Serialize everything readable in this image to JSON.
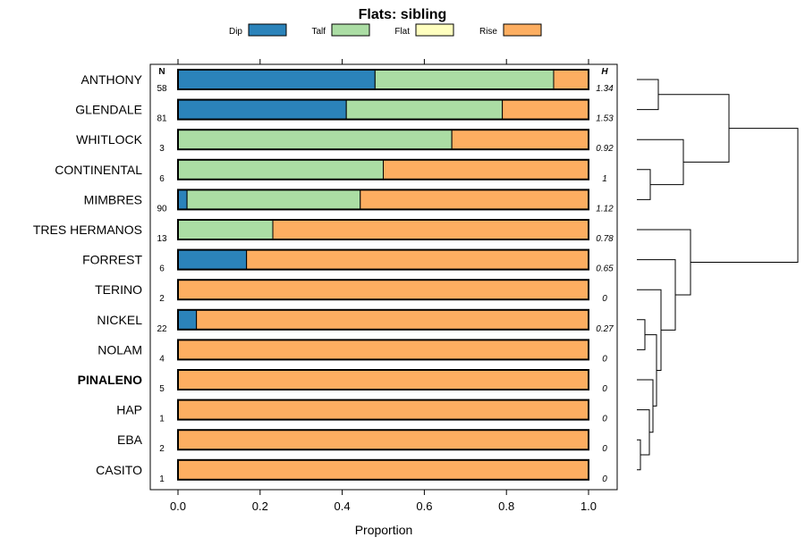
{
  "chart_data": {
    "type": "bar",
    "orientation": "horizontal",
    "stacked": true,
    "title": "Flats: sibling",
    "xlabel": "Proportion",
    "ylabel": "",
    "xlim": [
      0,
      1
    ],
    "x_ticks": [
      "0.0",
      "0.2",
      "0.4",
      "0.6",
      "0.8",
      "1.0"
    ],
    "x_tick_values": [
      0,
      0.2,
      0.4,
      0.6,
      0.8,
      1.0
    ],
    "legend_position": "top",
    "column_headers": {
      "n": "N",
      "h": "H"
    },
    "categories": [
      "ANTHONY",
      "GLENDALE",
      "WHITLOCK",
      "CONTINENTAL",
      "MIMBRES",
      "TRES HERMANOS",
      "FORREST",
      "TERINO",
      "NICKEL",
      "NOLAM",
      "PINALENO",
      "HAP",
      "EBA",
      "CASITO"
    ],
    "bold_categories": [
      "PINALENO"
    ],
    "n_values": [
      "58",
      "81",
      "3",
      "6",
      "90",
      "13",
      "6",
      "2",
      "22",
      "4",
      "5",
      "1",
      "2",
      "1"
    ],
    "h_values": [
      "1.34",
      "1.53",
      "0.92",
      "1",
      "1.12",
      "0.78",
      "0.65",
      "0",
      "0.27",
      "0",
      "0",
      "0",
      "0",
      "0"
    ],
    "series": [
      {
        "name": "Dip",
        "color": "#2b83ba",
        "values": [
          0.48,
          0.41,
          0,
          0,
          0.022,
          0,
          0.167,
          0,
          0.045,
          0,
          0,
          0,
          0,
          0
        ]
      },
      {
        "name": "Talf",
        "color": "#abdda4",
        "values": [
          0.435,
          0.38,
          0.667,
          0.5,
          0.422,
          0.231,
          0,
          0,
          0,
          0,
          0,
          0,
          0,
          0
        ]
      },
      {
        "name": "Flat",
        "color": "#ffffbf",
        "values": [
          0,
          0,
          0,
          0,
          0,
          0,
          0,
          0,
          0,
          0,
          0,
          0,
          0,
          0
        ]
      },
      {
        "name": "Rise",
        "color": "#fdae61",
        "values": [
          0.085,
          0.21,
          0.333,
          0.5,
          0.556,
          0.769,
          0.833,
          1,
          0.955,
          1,
          1,
          1,
          1,
          1
        ]
      }
    ],
    "dendrogram": {
      "description": "hierarchical clustering of categories (leaf order top to bottom)",
      "merges": [
        [
          "ANTHONY",
          "GLENDALE"
        ],
        [
          "CONTINENTAL",
          "MIMBRES"
        ],
        [
          "WHITLOCK",
          "CONTINENTAL+MIMBRES"
        ],
        [
          "ANTHONY+GLENDALE",
          "WHITLOCK+CONTINENTAL+MIMBRES"
        ],
        [
          "NICKEL",
          "NOLAM"
        ],
        [
          "EBA",
          "CASITO"
        ],
        [
          "HAP",
          "EBA+CASITO"
        ],
        [
          "PINALENO",
          "HAP+EBA+CASITO"
        ],
        [
          "NICKEL+NOLAM",
          "PINALENO+HAP+EBA+CASITO"
        ],
        [
          "TERINO",
          "NICKEL+NOLAM+PINALENO+HAP+EBA+CASITO"
        ],
        [
          "FORREST",
          "TERINO+NICKEL+NOLAM+PINALENO+HAP+EBA+CASITO"
        ],
        [
          "TRES HERMANOS",
          "FORREST+TERINO+NICKEL+NOLAM+PINALENO+HAP+EBA+CASITO"
        ],
        [
          "ANTHONY+GLENDALE+WHITLOCK+CONTINENTAL+MIMBRES",
          "TRES HERMANOS+FORREST+TERINO+NICKEL+NOLAM+PINALENO+HAP+EBA+CASITO"
        ]
      ]
    }
  }
}
